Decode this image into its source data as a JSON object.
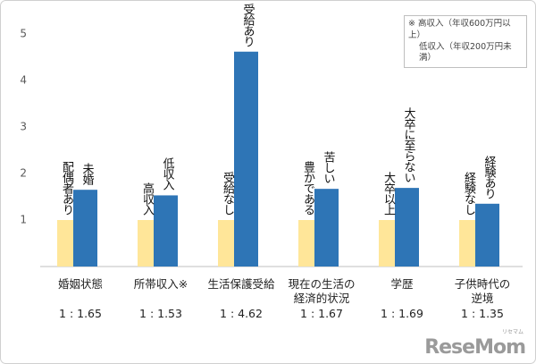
{
  "chart_data": {
    "type": "bar",
    "categories": [
      "婚姻状態",
      "所帯収入※",
      "生活保護受給",
      "現在の生活の\n経済的状況",
      "学歴",
      "子供時代の\n逆境"
    ],
    "series": [
      {
        "color": "#ffe699",
        "values": [
          1,
          1,
          1,
          1,
          1,
          1
        ],
        "labels": [
          "配偶者あり",
          "高収入",
          "受給なし",
          "豊かである",
          "大卒以上",
          "経験なし"
        ]
      },
      {
        "color": "#2e75b6",
        "values": [
          1.65,
          1.53,
          4.62,
          1.67,
          1.69,
          1.35
        ],
        "labels": [
          "未婚",
          "低収入",
          "受給あり",
          "苦しい",
          "大卒に至らない",
          "経験あり"
        ],
        "value_labels": [
          "1 : 1.65",
          "1 : 1.53",
          "1 : 4.62",
          "1 : 1.67",
          "1 : 1.69",
          "1 : 1.35"
        ]
      }
    ],
    "ylim": [
      0,
      5
    ],
    "yticks": [
      1,
      2,
      3,
      4,
      5
    ],
    "grid": false,
    "note": [
      "※ 高収入（年収600万円以上）",
      "低収入（年収200万円未満）"
    ],
    "watermark": {
      "brand": "ReseMom",
      "sub": "リセマム"
    }
  }
}
